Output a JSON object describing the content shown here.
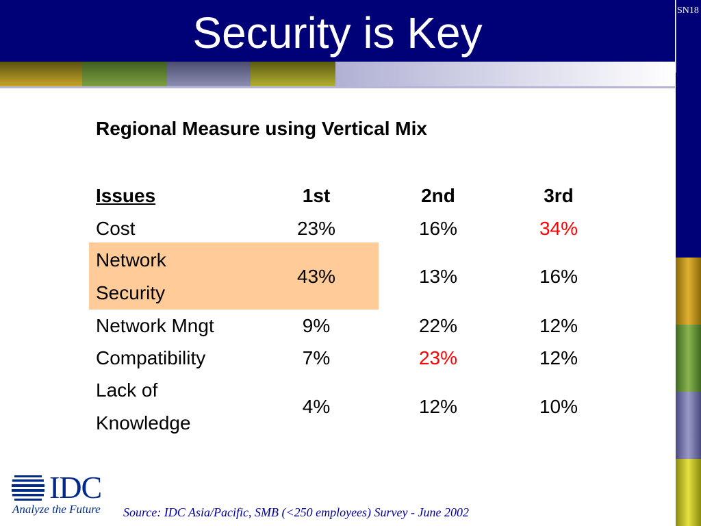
{
  "slide": {
    "title": "Security is Key",
    "slide_code": "SN18",
    "subtitle": "Regional Measure using Vertical Mix"
  },
  "table": {
    "headers": [
      "Issues",
      "1st",
      "2nd",
      "3rd"
    ],
    "rows": [
      {
        "issue_line1": "Cost",
        "issue_line2": "",
        "first": "23%",
        "second": "16%",
        "third": "34%"
      },
      {
        "issue_line1": "Network",
        "issue_line2": "Security",
        "first": "43%",
        "second": "13%",
        "third": "16%"
      },
      {
        "issue_line1": "Network Mngt",
        "issue_line2": "",
        "first": "9%",
        "second": "22%",
        "third": "12%"
      },
      {
        "issue_line1": "Compatibility",
        "issue_line2": "",
        "first": "7%",
        "second": "23%",
        "third": "12%"
      },
      {
        "issue_line1": "Lack of",
        "issue_line2": "Knowledge",
        "first": "4%",
        "second": "12%",
        "third": "10%"
      }
    ],
    "highlight_color": "#ffcc99",
    "emphasis_color": "#ff0000"
  },
  "logo": {
    "brand": "IDC",
    "tagline": "Analyze the Future"
  },
  "footer": {
    "source": "Source: IDC Asia/Pacific, SMB (<250 employees) Survey - June 2002"
  },
  "colors": {
    "title_bar": "#000077",
    "stripe": [
      "#8f8420",
      "#6f8b33",
      "#7c7f9b",
      "#8c8a2a",
      "#b8b8d8"
    ],
    "right_column": [
      "#000077",
      "#c79a12",
      "#6f9a3a",
      "#7a7aa8",
      "#c8c41a"
    ]
  }
}
